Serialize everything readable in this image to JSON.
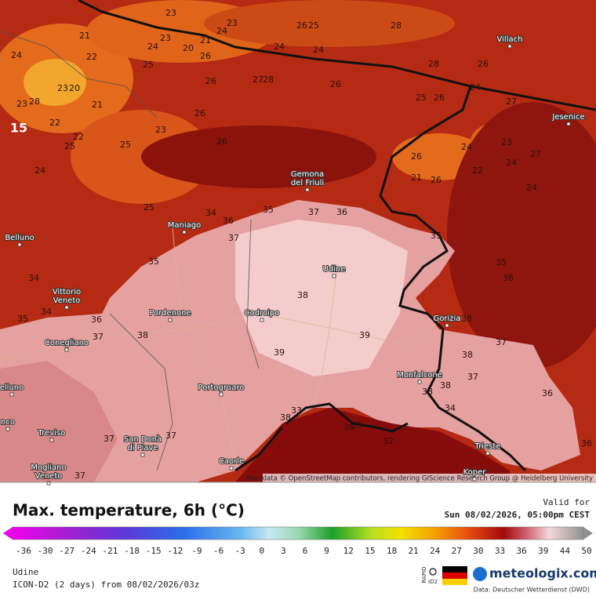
{
  "map": {
    "attribution": "Map data © OpenStreetMap contributors, rendering GIScience Research Group @ Heidelberg University",
    "highlight_label": 15,
    "cities": [
      [
        "Villach"
      ],
      [
        "Jesenice"
      ],
      [
        "Gemona",
        "del Friuli"
      ],
      [
        "Maniago"
      ],
      [
        "Belluno"
      ],
      [
        "Udine"
      ],
      [
        "Vittorio",
        "Veneto"
      ],
      [
        "Pordenone"
      ],
      [
        "Codroipo"
      ],
      [
        "Gorizia"
      ],
      [
        "Conegliano"
      ],
      [
        "Monfalcone"
      ],
      [
        "Portogruaro"
      ],
      [
        "elluno"
      ],
      [
        "nco"
      ],
      [
        "Treviso"
      ],
      [
        "San Donà",
        "di Piave"
      ],
      [
        "Trieste"
      ],
      [
        "Mogliano",
        "Veneto"
      ],
      [
        "Caorle"
      ],
      [
        "Koper"
      ]
    ],
    "temperature_labels": [
      23,
      23,
      26,
      25,
      28,
      24,
      21,
      23,
      21,
      24,
      20,
      24,
      24,
      22,
      24,
      25,
      26,
      23,
      20,
      28,
      26,
      27,
      28,
      26,
      26,
      25,
      26,
      27,
      24,
      23,
      28,
      21,
      22,
      23,
      26,
      25,
      22,
      25,
      24,
      24,
      23,
      22,
      24,
      27,
      26,
      21,
      26,
      24,
      26,
      34,
      35,
      37,
      36,
      36,
      25,
      37,
      35,
      34,
      36,
      35,
      35,
      38,
      36,
      35,
      34,
      37,
      38,
      39,
      39,
      38,
      37,
      38,
      37,
      38,
      38,
      36,
      34,
      33,
      38,
      37,
      37,
      37,
      36,
      35,
      32,
      38
    ]
  },
  "legend": {
    "title": "Max. temperature, 6h (°C)",
    "ticks": [
      -36,
      -30,
      -27,
      -24,
      -21,
      -18,
      -15,
      -12,
      -9,
      -6,
      -3,
      0,
      3,
      6,
      9,
      12,
      15,
      18,
      21,
      24,
      27,
      30,
      33,
      36,
      39,
      44,
      50
    ]
  },
  "footer": {
    "valid_label": "Valid for",
    "valid_time": "Sun 08/02/2026, 05:00pm CEST",
    "location": "Udine",
    "model": "ICON-D2 (2 days) from 08/02/2026/03z",
    "rapid": "RAPID",
    "id2": "ID2",
    "brand": "meteologix.com",
    "source": "Data: Deutscher Wetterdienst (DWD)"
  }
}
